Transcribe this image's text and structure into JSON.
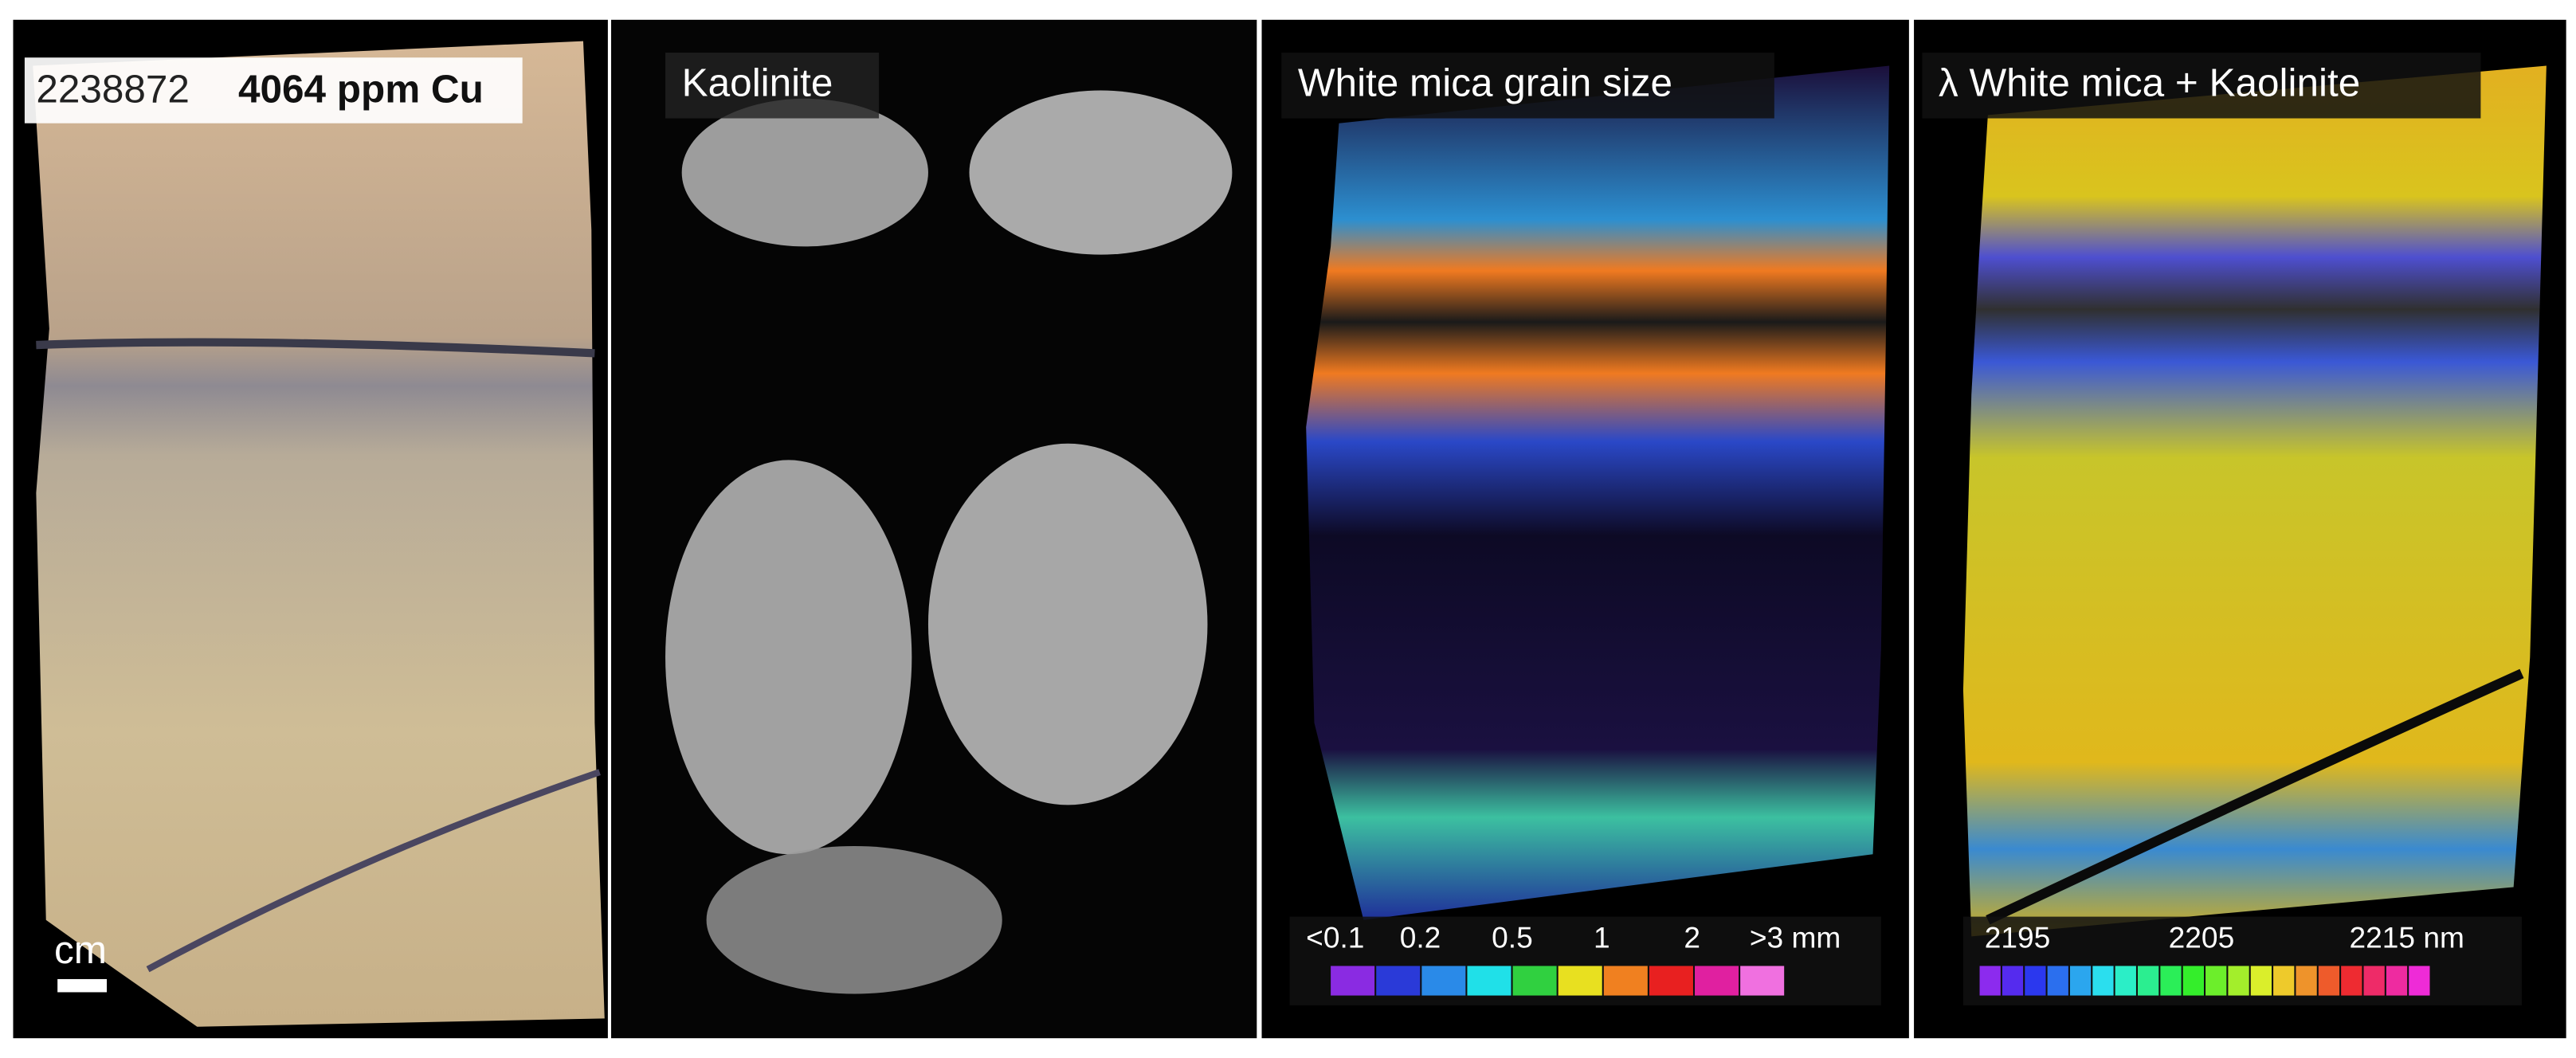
{
  "panels": [
    {
      "sample_id": "2238872",
      "grade": "4064 ppm Cu",
      "scale_label": "cm"
    },
    {
      "title": "Kaolinite"
    },
    {
      "title": "White mica grain size",
      "legend_labels": [
        "<0.1",
        "0.2",
        "0.5",
        "1",
        "2",
        ">3 mm"
      ]
    },
    {
      "title": "λ White mica + Kaolinite",
      "legend_labels": [
        "2195",
        "2205",
        "2215 nm"
      ]
    }
  ]
}
